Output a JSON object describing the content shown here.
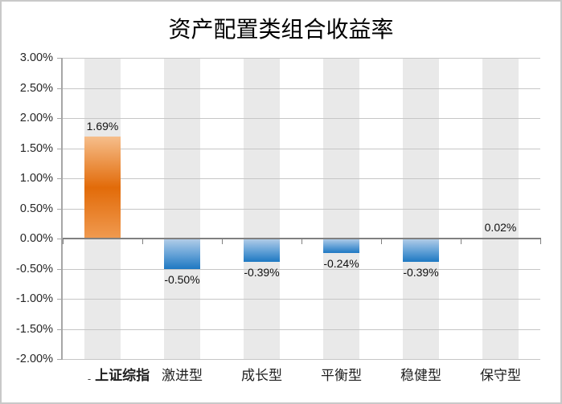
{
  "chart_data": {
    "type": "bar",
    "title": "资产配置类组合收益率",
    "categories": [
      "上证综指",
      "激进型",
      "成长型",
      "平衡型",
      "稳健型",
      "保守型"
    ],
    "values": [
      1.69,
      -0.5,
      -0.39,
      -0.24,
      -0.39,
      0.02
    ],
    "data_labels": [
      "1.69%",
      "-0.50%",
      "-0.39%",
      "-0.24%",
      "-0.39%",
      "0.02%"
    ],
    "first_category_prefix": "-",
    "xlabel": "",
    "ylabel": "",
    "ylim": [
      -2,
      3
    ],
    "ytick_step": 0.5,
    "ytick_labels": [
      "3.00%",
      "2.50%",
      "2.00%",
      "1.50%",
      "1.00%",
      "0.50%",
      "0.00%",
      "-0.50%",
      "-1.00%",
      "-1.50%",
      "-2.00%"
    ],
    "grid": true,
    "legend_position": "none",
    "bar_style": {
      "positive_gradient": [
        "#F6BE8B",
        "#E26B09",
        "#F09A50"
      ],
      "negative_gradient": [
        "#B5CEE8",
        "#6FA8DA",
        "#1E78C2"
      ],
      "column_background": "#E9E9E9"
    }
  },
  "colors": {
    "background": "#FFFFFF",
    "border": "#C9C9C9",
    "gridline": "#C6C6C6",
    "zero_line": "#808080",
    "axis_line": "#A6A6A6",
    "title_text": "#000000",
    "label_text": "#1F1F1F"
  }
}
